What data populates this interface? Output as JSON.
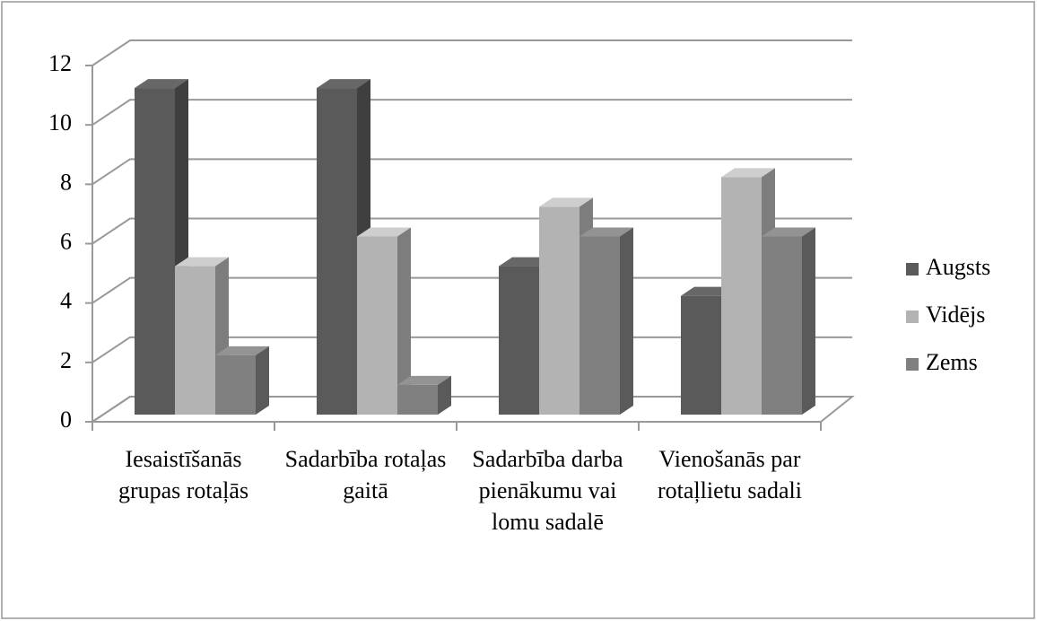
{
  "chart_data": {
    "type": "bar3d",
    "categories": [
      "Iesaistīšanās grupas rotaļās",
      "Sadarbība rotaļas gaitā",
      "Sadarbība darba pienākumu vai lomu sadalē",
      "Vienošanās par rotaļlietu sadali"
    ],
    "series": [
      {
        "name": "Augsts",
        "color": "#5a5a5a",
        "values": [
          11,
          11,
          5,
          4
        ]
      },
      {
        "name": "Vidējs",
        "color": "#b3b3b3",
        "values": [
          5,
          6,
          7,
          8
        ]
      },
      {
        "name": "Zems",
        "color": "#808080",
        "values": [
          2,
          1,
          6,
          6
        ]
      }
    ],
    "ylim": [
      0,
      12
    ],
    "yticks": [
      0,
      2,
      4,
      6,
      8,
      10,
      12
    ],
    "grid": true,
    "legend": "right"
  }
}
